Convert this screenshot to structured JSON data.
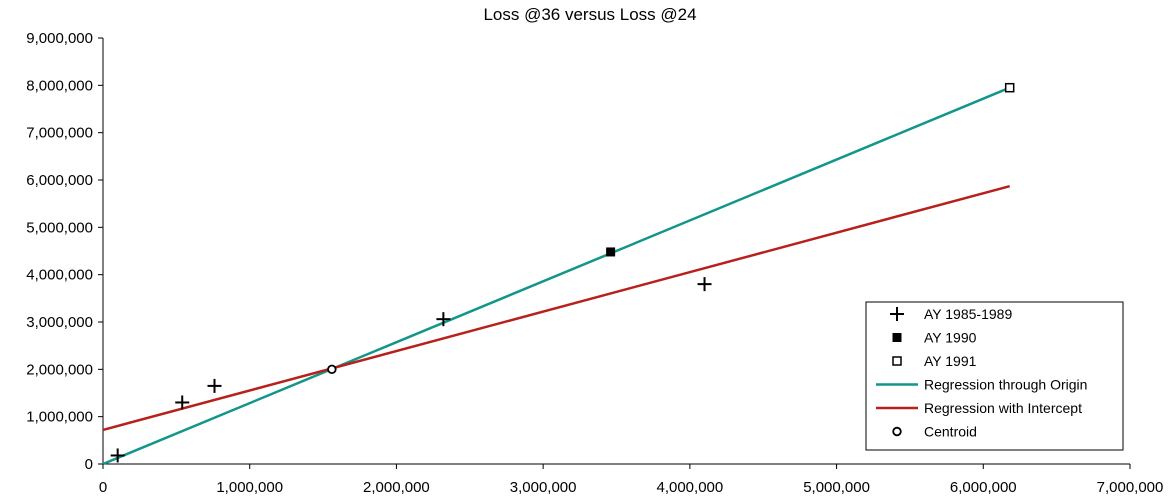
{
  "chart_data": {
    "type": "scatter",
    "title": "Loss @36 versus Loss @24",
    "xlabel": "",
    "ylabel": "",
    "xlim": [
      0,
      7000000
    ],
    "ylim": [
      0,
      9000000
    ],
    "x_ticks": [
      0,
      1000000,
      2000000,
      3000000,
      4000000,
      5000000,
      6000000,
      7000000
    ],
    "x_tick_labels": [
      "0",
      "1,000,000",
      "2,000,000",
      "3,000,000",
      "4,000,000",
      "5,000,000",
      "6,000,000",
      "7,000,000"
    ],
    "y_ticks": [
      0,
      1000000,
      2000000,
      3000000,
      4000000,
      5000000,
      6000000,
      7000000,
      8000000,
      9000000
    ],
    "y_tick_labels": [
      "0",
      "1,000,000",
      "2,000,000",
      "3,000,000",
      "4,000,000",
      "5,000,000",
      "6,000,000",
      "7,000,000",
      "8,000,000",
      "9,000,000"
    ],
    "grid": false,
    "legend_position": "bottom-right",
    "series": [
      {
        "name": "AY 1985-1989",
        "kind": "scatter",
        "marker": "plus",
        "color": "#000000",
        "points": [
          [
            100000,
            180000
          ],
          [
            540000,
            1300000
          ],
          [
            760000,
            1650000
          ],
          [
            2320000,
            3060000
          ],
          [
            4100000,
            3800000
          ]
        ]
      },
      {
        "name": "AY 1990",
        "kind": "scatter",
        "marker": "filled-square",
        "color": "#000000",
        "points": [
          [
            3460000,
            4480000
          ]
        ]
      },
      {
        "name": "AY 1991",
        "kind": "scatter",
        "marker": "open-square",
        "color": "#000000",
        "points": [
          [
            6180000,
            7950000
          ]
        ]
      },
      {
        "name": "Regression through Origin",
        "kind": "line",
        "color": "#12968a",
        "points": [
          [
            0,
            0
          ],
          [
            6180000,
            7950000
          ]
        ]
      },
      {
        "name": "Regression with Intercept",
        "kind": "line",
        "color": "#b8201c",
        "points": [
          [
            0,
            720000
          ],
          [
            6180000,
            5870000
          ]
        ]
      },
      {
        "name": "Centroid",
        "kind": "scatter",
        "marker": "open-circle",
        "color": "#000000",
        "points": [
          [
            1560000,
            2000000
          ]
        ]
      }
    ]
  }
}
